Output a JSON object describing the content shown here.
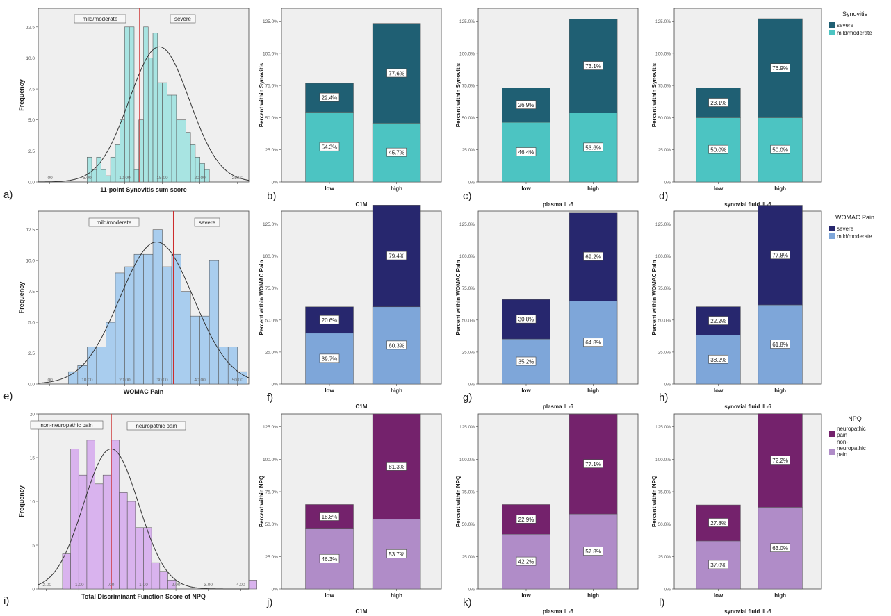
{
  "colors": {
    "panel_bg": "#efefef",
    "synovitis_severe": "#1f5f73",
    "synovitis_mild": "#4cc4c2",
    "synovitis_hist": "#a8e4e2",
    "womac_severe": "#27276e",
    "womac_mild": "#7ea6d9",
    "womac_hist": "#a9cdee",
    "npq_neuro": "#74226c",
    "npq_nonneuro": "#b08cc8",
    "npq_hist": "#d9b3ee",
    "cut_line": "#cc2c2c",
    "curve": "#333333"
  },
  "rows": [
    {
      "legend_title": "Synovitis",
      "legend_items": [
        "severe",
        "mild/moderate"
      ],
      "bar_ylabel": "Percent within Synovitis",
      "bar_ticks": [
        "0%",
        "25.0%",
        "50.0%",
        "75.0%",
        "100.0%",
        "125.0%"
      ]
    },
    {
      "legend_title": "WOMAC Pain",
      "legend_items": [
        "severe",
        "mild/moderate"
      ],
      "bar_ylabel": "Percent within WOMAC Pain",
      "bar_ticks": [
        "0%",
        "25.0%",
        "50.0%",
        "75.0%",
        "100.0%",
        "125.0%"
      ]
    },
    {
      "legend_title": "NPQ",
      "legend_items": [
        "neuropathic pain",
        "non-neuropathic pain"
      ],
      "bar_ylabel": "Percent within NPQ",
      "bar_ticks": [
        "0%",
        "25.0%",
        "50.0%",
        "75.0%",
        "100.0%",
        "125.0%"
      ]
    }
  ],
  "chart_data": [
    {
      "panel": "a)",
      "type": "histogram",
      "row": 0,
      "xlabel": "11-point Synovitis sum score",
      "ylabel": "Frequency",
      "xlim": [
        -1.5,
        26.5
      ],
      "ylim": [
        0,
        14
      ],
      "xticks": [
        0,
        5,
        10,
        15,
        20,
        25
      ],
      "xtick_labels": [
        ".00",
        "5.00",
        "10.00",
        "15.00",
        "20.00",
        "25.00"
      ],
      "yticks": [
        0,
        2.5,
        5,
        7.5,
        10,
        12.5
      ],
      "ytick_labels": [
        "0.0",
        "2.5",
        "5.0",
        "7.5",
        "10.0",
        "12.5"
      ],
      "bin_start": 5,
      "bin_width": 0.625,
      "counts": [
        2,
        1,
        2,
        1,
        0.5,
        2,
        3,
        5,
        12.5,
        12.5,
        1,
        5,
        12.5,
        10,
        12,
        8,
        8,
        7,
        7,
        5,
        5,
        4,
        3,
        2,
        1.5,
        1
      ],
      "cutoff": 12,
      "normal": {
        "mean": 14.6,
        "sd": 4.0,
        "peak": 10.9
      },
      "annotations": [
        "mild/moderate",
        "severe"
      ]
    },
    {
      "panel": "b)",
      "type": "bar",
      "stacked": true,
      "row": 0,
      "xlabel": "C1M",
      "ylabel": "Percent within Synovitis",
      "ylim": [
        0,
        135
      ],
      "categories": [
        "low",
        "high"
      ],
      "series": [
        {
          "name": "mild/moderate",
          "values": [
            54.3,
            45.7
          ],
          "labels": [
            "54.3%",
            "45.7%"
          ]
        },
        {
          "name": "severe",
          "values": [
            22.4,
            77.6
          ],
          "labels": [
            "22.4%",
            "77.6%"
          ]
        }
      ]
    },
    {
      "panel": "c)",
      "type": "bar",
      "stacked": true,
      "row": 0,
      "xlabel": "plasma IL-6",
      "ylabel": "Percent within Synovitis",
      "ylim": [
        0,
        135
      ],
      "categories": [
        "low",
        "high"
      ],
      "series": [
        {
          "name": "mild/moderate",
          "values": [
            46.4,
            53.6
          ],
          "labels": [
            "46.4%",
            "53.6%"
          ]
        },
        {
          "name": "severe",
          "values": [
            26.9,
            73.1
          ],
          "labels": [
            "26.9%",
            "73.1%"
          ]
        }
      ]
    },
    {
      "panel": "d)",
      "type": "bar",
      "stacked": true,
      "row": 0,
      "xlabel": "synovial fluid IL-6",
      "ylabel": "Percent within Synovitis",
      "ylim": [
        0,
        135
      ],
      "categories": [
        "low",
        "high"
      ],
      "series": [
        {
          "name": "mild/moderate",
          "values": [
            50.0,
            50.0
          ],
          "labels": [
            "50.0%",
            "50.0%"
          ]
        },
        {
          "name": "severe",
          "values": [
            23.1,
            76.9
          ],
          "labels": [
            "23.1%",
            "76.9%"
          ]
        }
      ]
    },
    {
      "panel": "e)",
      "type": "histogram",
      "row": 1,
      "xlabel": "WOMAC Pain",
      "ylabel": "Frequency",
      "xlim": [
        -3,
        53
      ],
      "ylim": [
        0,
        14
      ],
      "xticks": [
        0,
        10,
        20,
        30,
        40,
        50
      ],
      "xtick_labels": [
        ".00",
        "10.00",
        "20.00",
        "30.00",
        "40.00",
        "50.00"
      ],
      "yticks": [
        0,
        2.5,
        5,
        7.5,
        10,
        12.5
      ],
      "ytick_labels": [
        "0.0",
        "2.5",
        "5.0",
        "7.5",
        "10.0",
        "12.5"
      ],
      "bin_start": 5,
      "bin_width": 2.5,
      "counts": [
        1,
        1.5,
        3,
        3,
        5,
        9,
        9.5,
        10.5,
        10.5,
        12.5,
        9.5,
        10.5,
        7.5,
        5.5,
        5.5,
        10,
        3,
        3,
        1
      ],
      "cutoff": 33,
      "normal": {
        "mean": 28.5,
        "sd": 9.8,
        "peak": 11.5
      },
      "annotations": [
        "mild/moderate",
        "severe"
      ]
    },
    {
      "panel": "f)",
      "type": "bar",
      "stacked": true,
      "row": 1,
      "xlabel": "C1M",
      "ylabel": "Percent within WOMAC Pain",
      "ylim": [
        0,
        135
      ],
      "categories": [
        "low",
        "high"
      ],
      "series": [
        {
          "name": "mild/moderate",
          "values": [
            39.7,
            60.3
          ],
          "labels": [
            "39.7%",
            "60.3%"
          ]
        },
        {
          "name": "severe",
          "values": [
            20.6,
            79.4
          ],
          "labels": [
            "20.6%",
            "79.4%"
          ]
        }
      ]
    },
    {
      "panel": "g)",
      "type": "bar",
      "stacked": true,
      "row": 1,
      "xlabel": "plasma IL-6",
      "ylabel": "Percent within WOMAC Pain",
      "ylim": [
        0,
        135
      ],
      "categories": [
        "low",
        "high"
      ],
      "series": [
        {
          "name": "mild/moderate",
          "values": [
            35.2,
            64.8
          ],
          "labels": [
            "35.2%",
            "64.8%"
          ]
        },
        {
          "name": "severe",
          "values": [
            30.8,
            69.2
          ],
          "labels": [
            "30.8%",
            "69.2%"
          ]
        }
      ]
    },
    {
      "panel": "h)",
      "type": "bar",
      "stacked": true,
      "row": 1,
      "xlabel": "synovial fluid IL-6",
      "ylabel": "Percent within WOMAC Pain",
      "ylim": [
        0,
        135
      ],
      "categories": [
        "low",
        "high"
      ],
      "series": [
        {
          "name": "mild/moderate",
          "values": [
            38.2,
            61.8
          ],
          "labels": [
            "38.2%",
            "61.8%"
          ]
        },
        {
          "name": "severe",
          "values": [
            22.2,
            77.8
          ],
          "labels": [
            "22.2%",
            "77.8%"
          ]
        }
      ]
    },
    {
      "panel": "i)",
      "type": "histogram",
      "row": 2,
      "xlabel": "Total Discriminant Function Score of NPQ",
      "ylabel": "Frequency",
      "xlim": [
        -2.25,
        4.25
      ],
      "ylim": [
        0,
        20
      ],
      "xticks": [
        -2,
        -1,
        0,
        1,
        2,
        3,
        4
      ],
      "xtick_labels": [
        "-2.00",
        "-1.00",
        ".00",
        "1.00",
        "2.00",
        "3.00",
        "4.00"
      ],
      "yticks": [
        0,
        5,
        10,
        15,
        20
      ],
      "ytick_labels": [
        "0",
        "5",
        "10",
        "15",
        "20"
      ],
      "bin_start": -1.5,
      "bin_width": 0.25,
      "counts": [
        4,
        16,
        13,
        17,
        12,
        13,
        17,
        11,
        10,
        7,
        7,
        3,
        2,
        1,
        0,
        0,
        0,
        0,
        0,
        0,
        0,
        0,
        0,
        1
      ],
      "cutoff": 0,
      "normal": {
        "mean": 0.0,
        "sd": 0.85,
        "peak": 16
      },
      "annotations": [
        "non-neuropathic pain",
        "neuropathic pain"
      ]
    },
    {
      "panel": "j)",
      "type": "bar",
      "stacked": true,
      "row": 2,
      "xlabel": "C1M",
      "ylabel": "Percent within NPQ",
      "ylim": [
        0,
        135
      ],
      "categories": [
        "low",
        "high"
      ],
      "series": [
        {
          "name": "non-neuropathic pain",
          "values": [
            46.3,
            53.7
          ],
          "labels": [
            "46.3%",
            "53.7%"
          ]
        },
        {
          "name": "neuropathic pain",
          "values": [
            18.8,
            81.3
          ],
          "labels": [
            "18.8%",
            "81.3%"
          ]
        }
      ]
    },
    {
      "panel": "k)",
      "type": "bar",
      "stacked": true,
      "row": 2,
      "xlabel": "plasma IL-6",
      "ylabel": "Percent within NPQ",
      "ylim": [
        0,
        135
      ],
      "categories": [
        "low",
        "high"
      ],
      "series": [
        {
          "name": "non-neuropathic pain",
          "values": [
            42.2,
            57.8
          ],
          "labels": [
            "42.2%",
            "57.8%"
          ]
        },
        {
          "name": "neuropathic pain",
          "values": [
            22.9,
            77.1
          ],
          "labels": [
            "22.9%",
            "77.1%"
          ]
        }
      ]
    },
    {
      "panel": "l)",
      "type": "bar",
      "stacked": true,
      "row": 2,
      "xlabel": "synovial fluid IL-6",
      "ylabel": "Percent within NPQ",
      "ylim": [
        0,
        135
      ],
      "categories": [
        "low",
        "high"
      ],
      "series": [
        {
          "name": "non-neuropathic pain",
          "values": [
            37.0,
            63.0
          ],
          "labels": [
            "37.0%",
            "63.0%"
          ]
        },
        {
          "name": "neuropathic pain",
          "values": [
            27.8,
            72.2
          ],
          "labels": [
            "27.8%",
            "72.2%"
          ]
        }
      ]
    }
  ]
}
